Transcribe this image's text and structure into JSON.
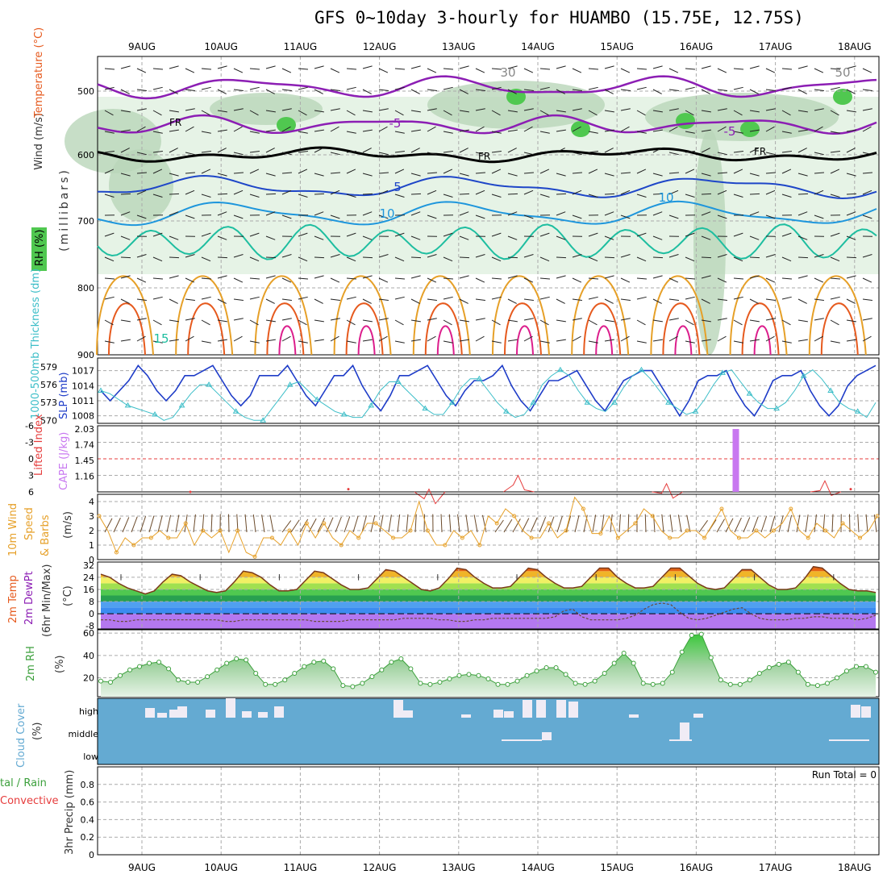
{
  "title": "GFS 0~10day 3-hourly for HUAMBO (15.75E, 12.75S)",
  "colors": {
    "rh_light": "#e6f3e6",
    "rh_mid": "#b9d6b9",
    "rh_dark": "#9cb99c",
    "rh_green": "#50c850",
    "temp_purple": "#8c1eb4",
    "temp_blue": "#1e46c8",
    "temp_cyan": "#1e96dc",
    "temp_teal": "#1ebea0",
    "temp_orange": "#e6a028",
    "temp_red": "#e65a1e",
    "temp_magenta": "#dc1e8c",
    "slp": "#1e3cc8",
    "thickness": "#3cbec8",
    "cape": "#c878f0",
    "lifted": "#e63c3c",
    "wind": "#e6a028",
    "cloud_bg": "#64aad2",
    "cloud_bar": "#f0ecf5",
    "rh2m": "#3ca03c"
  },
  "chart_data": [
    {
      "panel": "upper_air",
      "type": "heatmap",
      "x_dates": [
        "9AUG",
        "10AUG",
        "11AUG",
        "12AUG",
        "13AUG",
        "14AUG",
        "15AUG",
        "16AUG",
        "17AUG",
        "18AUG"
      ],
      "ylabel_parts": [
        "Wind (m/s)",
        "Temperature (°C)"
      ],
      "ylabel_unit": "(millibars)",
      "rh_legend": "RH (%)",
      "y_ticks": [
        "500",
        "600",
        "700",
        "800",
        "900"
      ],
      "ylim": [
        450,
        900
      ],
      "freezing_label": "FR",
      "contour_labels": [
        "-5",
        "5",
        "10",
        "15",
        "30",
        "50"
      ]
    },
    {
      "panel": "slp_thickness",
      "type": "line",
      "ylabel_left": "1000-500mb Thickness (dm)",
      "ylabel_right": "SLP (mb)",
      "thickness_ticks": [
        "579",
        "576",
        "573",
        "570"
      ],
      "slp_ticks": [
        "1017",
        "1014",
        "1011",
        "1008"
      ],
      "series": [
        {
          "name": "SLP (mb)",
          "ylim": [
            1006.5,
            1019.5
          ],
          "values": [
            1013,
            1011,
            1013,
            1015,
            1018,
            1016,
            1013,
            1011,
            1013,
            1016,
            1016,
            1017,
            1018,
            1015,
            1012,
            1010,
            1012,
            1016,
            1016,
            1016,
            1018,
            1015,
            1012,
            1010,
            1013,
            1016,
            1016,
            1018,
            1014,
            1011,
            1009,
            1012,
            1016,
            1016,
            1017,
            1018,
            1015,
            1012,
            1010,
            1013,
            1015,
            1015,
            1016,
            1018,
            1014,
            1011,
            1009,
            1012,
            1015,
            1015,
            1016,
            1017,
            1014,
            1011,
            1009,
            1012,
            1015,
            1016,
            1017,
            1017,
            1014,
            1011,
            1008,
            1011,
            1015,
            1016,
            1016,
            1017,
            1013,
            1010,
            1008,
            1011,
            1015,
            1016,
            1016,
            1017,
            1013,
            1010,
            1008,
            1010,
            1014,
            1016,
            1017,
            1018
          ]
        },
        {
          "name": "1000-500mb Thickness (dm)",
          "ylim": [
            569.5,
            580.5
          ],
          "values": [
            575,
            574.5,
            573.5,
            572.5,
            572,
            571.5,
            571,
            570,
            570.5,
            572.5,
            574.5,
            576,
            576,
            574.5,
            573,
            571.5,
            570.5,
            570,
            570,
            572,
            574,
            576,
            576.5,
            575,
            573.5,
            572.5,
            571.5,
            571,
            570.5,
            570.5,
            572.5,
            575,
            576.5,
            576.5,
            575,
            573.5,
            572,
            571,
            571,
            573,
            575.5,
            577,
            577,
            575,
            573,
            571.5,
            570.5,
            571,
            573,
            576,
            577.5,
            578.5,
            577.5,
            575,
            573,
            572,
            571.5,
            573,
            575.5,
            577.5,
            578.5,
            577,
            575,
            573,
            572,
            571,
            571.5,
            573.5,
            576,
            578,
            578.5,
            576.5,
            574.5,
            573,
            572,
            572,
            573,
            575,
            577.5,
            578.5,
            577,
            575,
            573,
            572,
            571.5,
            570.5,
            573
          ]
        }
      ]
    },
    {
      "panel": "cape_lifted",
      "type": "line",
      "ylabel_left": "Lifted Index",
      "ylabel_right": "CAPE (J/kg)",
      "li_ticks": [
        "-6",
        "-3",
        "0",
        "3",
        "6"
      ],
      "cape_ticks": [
        "2.03",
        "1.74",
        "1.45",
        "1.16"
      ],
      "cape_ylim": [
        0.87,
        2.09
      ],
      "cape_bars": [
        {
          "x": "16AUG 12Z",
          "value": 2.03
        }
      ],
      "li_ylim": [
        6,
        -6
      ],
      "li_peaks": [
        {
          "x": "13AUG 18Z",
          "value": 3
        },
        {
          "x": "15AUG 15Z",
          "value": 4.5
        },
        {
          "x": "17AUG 15Z",
          "value": 4
        },
        {
          "x": "12AUG 15Z",
          "value": 5.5
        }
      ]
    },
    {
      "panel": "wind10m",
      "type": "line",
      "ylabel": "10m Wind Speed (m/s) & Barbs",
      "ylabel_parts": [
        "10m Wind",
        "Speed",
        "(m/s)",
        "& Barbs"
      ],
      "y_ticks": [
        "4",
        "3",
        "2",
        "1",
        "0"
      ],
      "ylim": [
        0,
        4.5
      ],
      "values": [
        3,
        2,
        0.5,
        1.5,
        1,
        1.5,
        1.5,
        2,
        1.5,
        1.5,
        2.5,
        1,
        2,
        1.5,
        2,
        0.5,
        2,
        0.5,
        0.2,
        1.5,
        1.5,
        1,
        2,
        1,
        2.5,
        1.5,
        2.5,
        1.5,
        1,
        2,
        1.5,
        2.5,
        2.5,
        2,
        1.5,
        1.5,
        2,
        4,
        2,
        1,
        1,
        2,
        1.5,
        2,
        1,
        3,
        2.5,
        3.5,
        3,
        2,
        1.5,
        1.5,
        2.5,
        1.5,
        2,
        4.3,
        3.5,
        1.8,
        1.8,
        3,
        1.5,
        2,
        2.5,
        3.5,
        3,
        2,
        1.5,
        1.5,
        2,
        2,
        1.5,
        2.5,
        3.5,
        2,
        1.5,
        1.5,
        2,
        1.5,
        2,
        2.5,
        3.5,
        2,
        1.5,
        2.5,
        2,
        1.5,
        2.5,
        2,
        1.5,
        2,
        3
      ]
    },
    {
      "panel": "temp2m",
      "type": "area",
      "ylabel_parts": [
        "2m Temp",
        "2m DewPt",
        "(6hr Min/Max)"
      ],
      "ylabel_unit": "(°C)",
      "y_ticks": [
        "32",
        "24",
        "16",
        "8",
        "0",
        "-8"
      ],
      "ylim": [
        -10,
        34
      ],
      "temp_values": [
        26,
        24,
        20,
        17,
        15,
        13,
        15,
        21,
        26,
        25,
        21,
        18,
        15,
        14,
        15,
        21,
        28,
        27,
        24,
        19,
        15,
        15,
        16,
        22,
        28,
        27,
        23,
        19,
        16,
        16,
        17,
        23,
        29,
        28,
        24,
        20,
        16,
        15,
        17,
        23,
        30,
        29,
        24,
        20,
        17,
        17,
        18,
        24,
        30,
        29,
        24,
        20,
        17,
        17,
        18,
        24,
        30,
        30,
        24,
        20,
        17,
        17,
        18,
        24,
        30,
        30,
        25,
        20,
        17,
        16,
        17,
        23,
        29,
        29,
        24,
        19,
        16,
        16,
        17,
        23,
        31,
        30,
        25,
        20,
        16,
        15,
        15,
        14
      ],
      "dewpoint_values": [
        -4,
        -4,
        -5,
        -5,
        -4,
        -4,
        -4,
        -4,
        -4,
        -4,
        -4,
        -4,
        -4,
        -4,
        -5,
        -5,
        -4,
        -4,
        -4,
        -4,
        -4,
        -4,
        -4,
        -4,
        -5,
        -5,
        -5,
        -5,
        -4,
        -4,
        -4,
        -4,
        -4,
        -4,
        -3,
        -3,
        -3,
        -3,
        -4,
        -4,
        -5,
        -5,
        -4,
        -4,
        -3,
        -3,
        -3,
        -3,
        -3,
        -3,
        -3,
        -2,
        2,
        3,
        -2,
        -4,
        -4,
        -4,
        -4,
        -3,
        -1,
        3,
        6,
        7,
        6,
        1,
        -3,
        -4,
        -3,
        -1,
        1,
        3,
        4,
        0,
        -3,
        -4,
        -4,
        -4,
        -3,
        -3,
        -2,
        -2,
        -3,
        -3,
        -3,
        -4,
        -3,
        -1
      ]
    },
    {
      "panel": "rh2m",
      "type": "area",
      "ylabel": "2m RH",
      "ylabel_unit": "(%)",
      "y_ticks": [
        "60",
        "40",
        "20"
      ],
      "ylim": [
        3,
        63
      ],
      "values": [
        17,
        16,
        22,
        27,
        30,
        33,
        34,
        28,
        18,
        16,
        16,
        21,
        27,
        33,
        37,
        36,
        24,
        14,
        14,
        18,
        24,
        30,
        34,
        35,
        28,
        13,
        12,
        15,
        21,
        27,
        34,
        37,
        28,
        15,
        14,
        16,
        19,
        22,
        23,
        22,
        19,
        14,
        14,
        17,
        22,
        26,
        29,
        29,
        23,
        15,
        14,
        17,
        24,
        33,
        42,
        33,
        15,
        14,
        15,
        25,
        43,
        58,
        59,
        38,
        18,
        14,
        14,
        18,
        24,
        29,
        32,
        34,
        25,
        14,
        13,
        15,
        20,
        26,
        30,
        30,
        25
      ]
    },
    {
      "panel": "cloud",
      "type": "bar",
      "ylabel": "Cloud Cover (%)",
      "ylabel_parts": [
        "Cloud Cover",
        "(%)"
      ],
      "levels": [
        "high",
        "middle",
        "low"
      ]
    },
    {
      "panel": "precip",
      "type": "bar",
      "ylabel": "3hr Precip (mm)",
      "legend_total": "tal / Rain",
      "legend_conv": "Convective",
      "run_total": "Run Total = 0",
      "y_ticks": [
        "0.8",
        "0.6",
        "0.4",
        "0.2",
        "0"
      ],
      "ylim": [
        0,
        1
      ],
      "values": []
    }
  ]
}
